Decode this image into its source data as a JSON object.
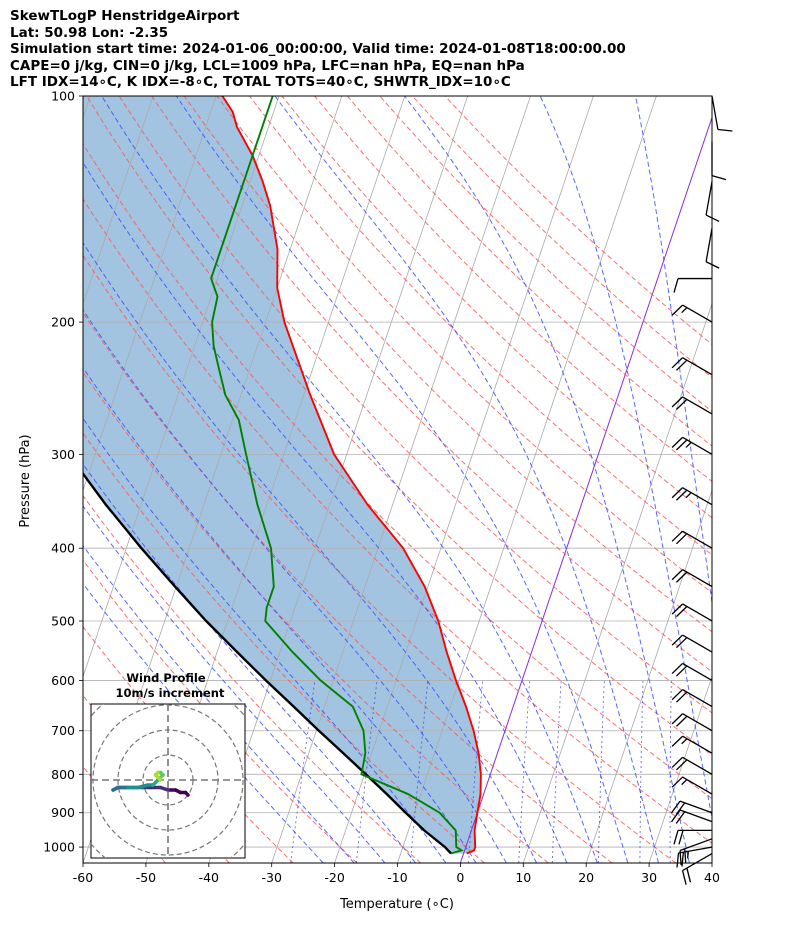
{
  "title_lines": [
    "SkewTLogP HenstridgeAirport",
    "Lat: 50.98   Lon: -2.35",
    "Simulation start time: 2024-01-06_00:00:00, Valid time: 2024-01-08T18:00:00.00",
    "CAPE=0 j/kg, CIN=0 j/kg, LCL=1009 hPa, LFC=nan hPa, EQ=nan hPa",
    "LFT IDX=14∘C, K IDX=-8∘C, TOTAL TOTS=40∘C, SHWTR_IDX=10∘C"
  ],
  "chart_data": {
    "type": "line",
    "subtype": "skew-T log-P",
    "xlabel": "Temperature (∘C)",
    "ylabel": "Pressure (hPa)",
    "xlim": [
      -60,
      40
    ],
    "ylim": [
      1050,
      100
    ],
    "x_ticks": [
      -60,
      -50,
      -40,
      -30,
      -20,
      -10,
      0,
      10,
      20,
      30,
      40
    ],
    "y_ticks": [
      1000,
      900,
      800,
      700,
      600,
      500,
      400,
      300,
      200,
      100
    ],
    "y_scale": "log",
    "grid": true,
    "colors": {
      "temperature": "#ff0000",
      "dewpoint": "#008000",
      "parcel": "#000000",
      "cape_fill": "#7fadd4",
      "dry_adiabats": "#ff5555",
      "moist_adiabats": "#3a4fff",
      "mixing_ratio": "#2f2fe0",
      "isotherms": "#aaaaaa",
      "zero_isotherm": "#8a2be2"
    },
    "temperature": {
      "pressure": [
        1020,
        1010,
        1000,
        950,
        900,
        850,
        800,
        750,
        700,
        650,
        600,
        550,
        500,
        450,
        400,
        350,
        300,
        250,
        200,
        180,
        160,
        140,
        130,
        120,
        110,
        105,
        100
      ],
      "values": [
        0.5,
        1.5,
        1.5,
        0.5,
        0,
        -0.5,
        -1.5,
        -3,
        -5,
        -7.5,
        -10.5,
        -13.5,
        -16.5,
        -20.5,
        -26,
        -34,
        -42,
        -49,
        -57,
        -60,
        -62,
        -65.5,
        -68,
        -71,
        -75,
        -76.5,
        -79
      ]
    },
    "dewpoint": {
      "pressure": [
        1020,
        1010,
        1000,
        950,
        900,
        850,
        800,
        750,
        700,
        650,
        600,
        550,
        500,
        480,
        450,
        400,
        350,
        300,
        270,
        250,
        230,
        215,
        200,
        185,
        175,
        150,
        120,
        100
      ],
      "values": [
        -2,
        -0.5,
        -1.5,
        -2.5,
        -6,
        -12,
        -20.5,
        -21,
        -22.5,
        -25.5,
        -32,
        -38,
        -44,
        -44.5,
        -44.5,
        -47,
        -51.5,
        -56,
        -59,
        -62.5,
        -65,
        -67,
        -68.5,
        -69,
        -71,
        -71,
        -71,
        -71
      ]
    },
    "parcel": {
      "pressure": [
        1020,
        1000,
        950,
        900,
        850,
        800,
        750,
        700,
        650,
        600,
        550,
        500,
        450,
        400,
        350,
        300,
        250,
        200,
        150,
        100
      ],
      "values": [
        -2,
        -3.3,
        -7.5,
        -11.4,
        -15.4,
        -19.8,
        -24.5,
        -29.6,
        -34.9,
        -40.7,
        -46.8,
        -53.4,
        -60.2,
        -67.6,
        -75.6,
        -84.2,
        -93.6,
        -104.7,
        -117.4,
        -133.5
      ]
    },
    "wind_barbs": [
      {
        "pressure": 1020,
        "speed_kt": 20,
        "direction_deg": 240
      },
      {
        "pressure": 1000,
        "speed_kt": 25,
        "direction_deg": 260
      },
      {
        "pressure": 975,
        "speed_kt": 20,
        "direction_deg": 250
      },
      {
        "pressure": 950,
        "speed_kt": 20,
        "direction_deg": 270
      },
      {
        "pressure": 925,
        "speed_kt": 20,
        "direction_deg": 290
      },
      {
        "pressure": 900,
        "speed_kt": 20,
        "direction_deg": 290
      },
      {
        "pressure": 850,
        "speed_kt": 15,
        "direction_deg": 300
      },
      {
        "pressure": 800,
        "speed_kt": 20,
        "direction_deg": 300
      },
      {
        "pressure": 750,
        "speed_kt": 15,
        "direction_deg": 300
      },
      {
        "pressure": 700,
        "speed_kt": 20,
        "direction_deg": 300
      },
      {
        "pressure": 650,
        "speed_kt": 20,
        "direction_deg": 300
      },
      {
        "pressure": 600,
        "speed_kt": 20,
        "direction_deg": 300
      },
      {
        "pressure": 550,
        "speed_kt": 20,
        "direction_deg": 300
      },
      {
        "pressure": 500,
        "speed_kt": 20,
        "direction_deg": 300
      },
      {
        "pressure": 450,
        "speed_kt": 20,
        "direction_deg": 300
      },
      {
        "pressure": 400,
        "speed_kt": 20,
        "direction_deg": 300
      },
      {
        "pressure": 350,
        "speed_kt": 25,
        "direction_deg": 300
      },
      {
        "pressure": 300,
        "speed_kt": 25,
        "direction_deg": 300
      },
      {
        "pressure": 265,
        "speed_kt": 20,
        "direction_deg": 300
      },
      {
        "pressure": 235,
        "speed_kt": 20,
        "direction_deg": 300
      },
      {
        "pressure": 200,
        "speed_kt": 15,
        "direction_deg": 300
      },
      {
        "pressure": 175,
        "speed_kt": 10,
        "direction_deg": 270
      },
      {
        "pressure": 150,
        "speed_kt": 10,
        "direction_deg": 190
      },
      {
        "pressure": 130,
        "speed_kt": 10,
        "direction_deg": 190
      },
      {
        "pressure": 115,
        "speed_kt": 10,
        "direction_deg": 180
      },
      {
        "pressure": 100,
        "speed_kt": 10,
        "direction_deg": 170
      }
    ],
    "hodograph": {
      "title": "Wind Profile",
      "subtitle": "10m/s increment",
      "ring_increment_ms": 10,
      "u": [
        8,
        7,
        5,
        3,
        0,
        -3,
        -7,
        -10,
        -14,
        -17,
        -20,
        -22,
        -20,
        -16,
        -12,
        -8,
        -6,
        -5,
        -4,
        -3,
        -2,
        -3,
        -4,
        -5,
        -4,
        -3
      ],
      "v": [
        -6,
        -5,
        -5,
        -4,
        -4,
        -3,
        -3,
        -3,
        -3,
        -3,
        -3,
        -4,
        -3,
        -3,
        -3,
        -2,
        -2,
        -1,
        0,
        1,
        2,
        3,
        3,
        2,
        1,
        0
      ]
    }
  }
}
